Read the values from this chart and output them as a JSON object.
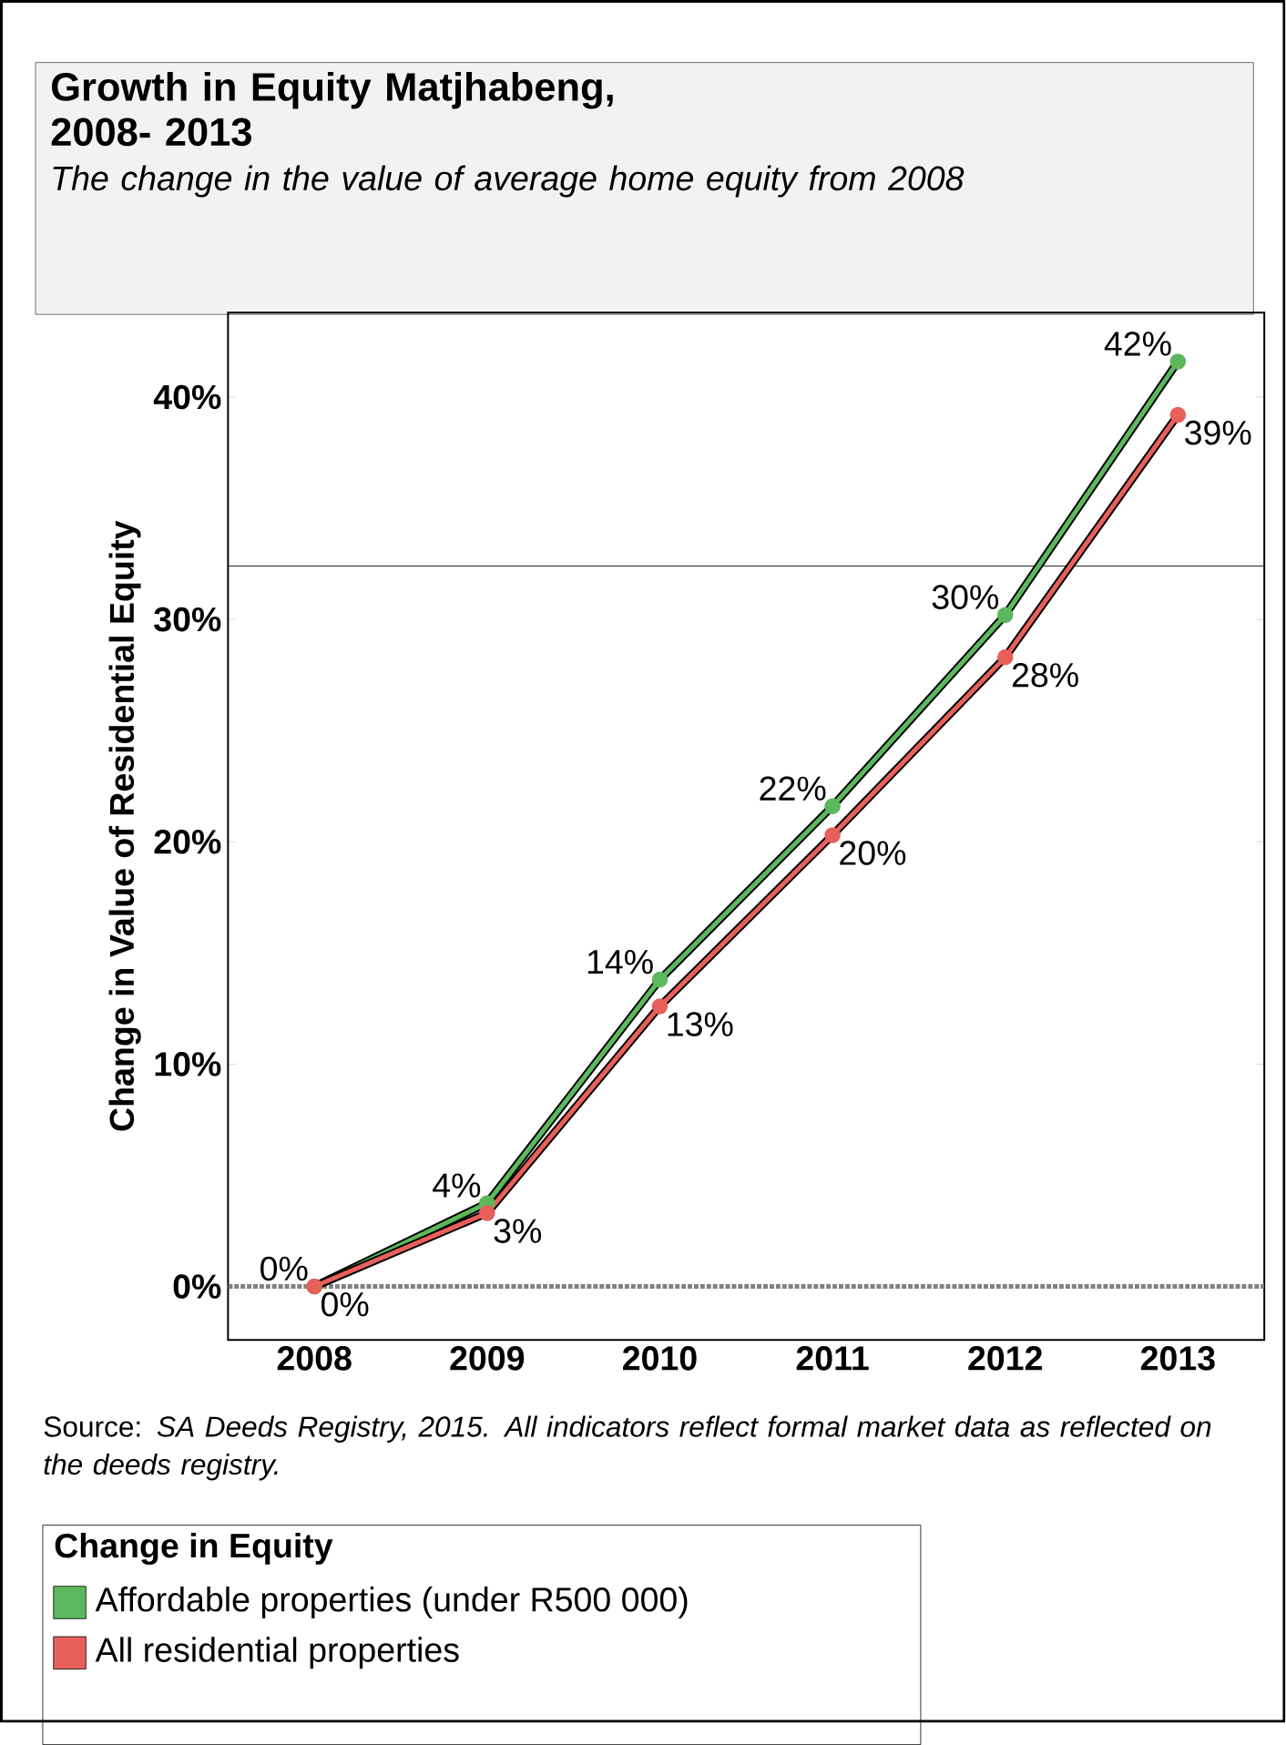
{
  "chart_data": {
    "type": "line",
    "title": "Growth in Equity Matjhabeng, 2008- 2013",
    "subtitle": "*The change in the value of average home equity from 2008*",
    "ylabel": "Change in Value of Residential Equity",
    "legend_title": "Change in Equity",
    "annotations": [
      "Source: *SA Deeds Registry, 2015. All indicators reflect formal market data as reflected on the deeds registry.*"
    ],
    "categories": [
      "2008",
      "2009",
      "2010",
      "2011",
      "2012",
      "2013"
    ],
    "series": [
      {
        "name": "Affordable properties (under R500 000)",
        "color": "#5cb85c",
        "values": [
          0,
          3.75,
          13.8,
          21.6,
          30.2,
          41.6
        ],
        "value_labels": [
          "0%",
          "4%",
          "14%",
          "22%",
          "30%",
          "42%"
        ]
      },
      {
        "name": "All residential properties",
        "color": "#e8605a",
        "values": [
          0,
          3.3,
          12.6,
          20.3,
          28.3,
          39.2
        ],
        "value_labels": [
          "0%",
          "3%",
          "13%",
          "20%",
          "28%",
          "39%"
        ]
      }
    ],
    "ylim": [
      -2.4,
      43.8
    ],
    "yticks": [
      {
        "value": 0,
        "label": "0%"
      },
      {
        "value": 10,
        "label": "10%"
      },
      {
        "value": 20,
        "label": "20%"
      },
      {
        "value": 30,
        "label": "30%"
      },
      {
        "value": 40,
        "label": "40%"
      }
    ],
    "ref_lines": [
      {
        "axis": "y",
        "value": 32.4,
        "color": "#404040",
        "line_style": "solid"
      },
      {
        "axis": "y",
        "value": 0,
        "color": "#808080",
        "line_style": "dotted"
      }
    ],
    "grid": false,
    "legend": "bottom",
    "marker": "circle",
    "line_style": "solid"
  }
}
